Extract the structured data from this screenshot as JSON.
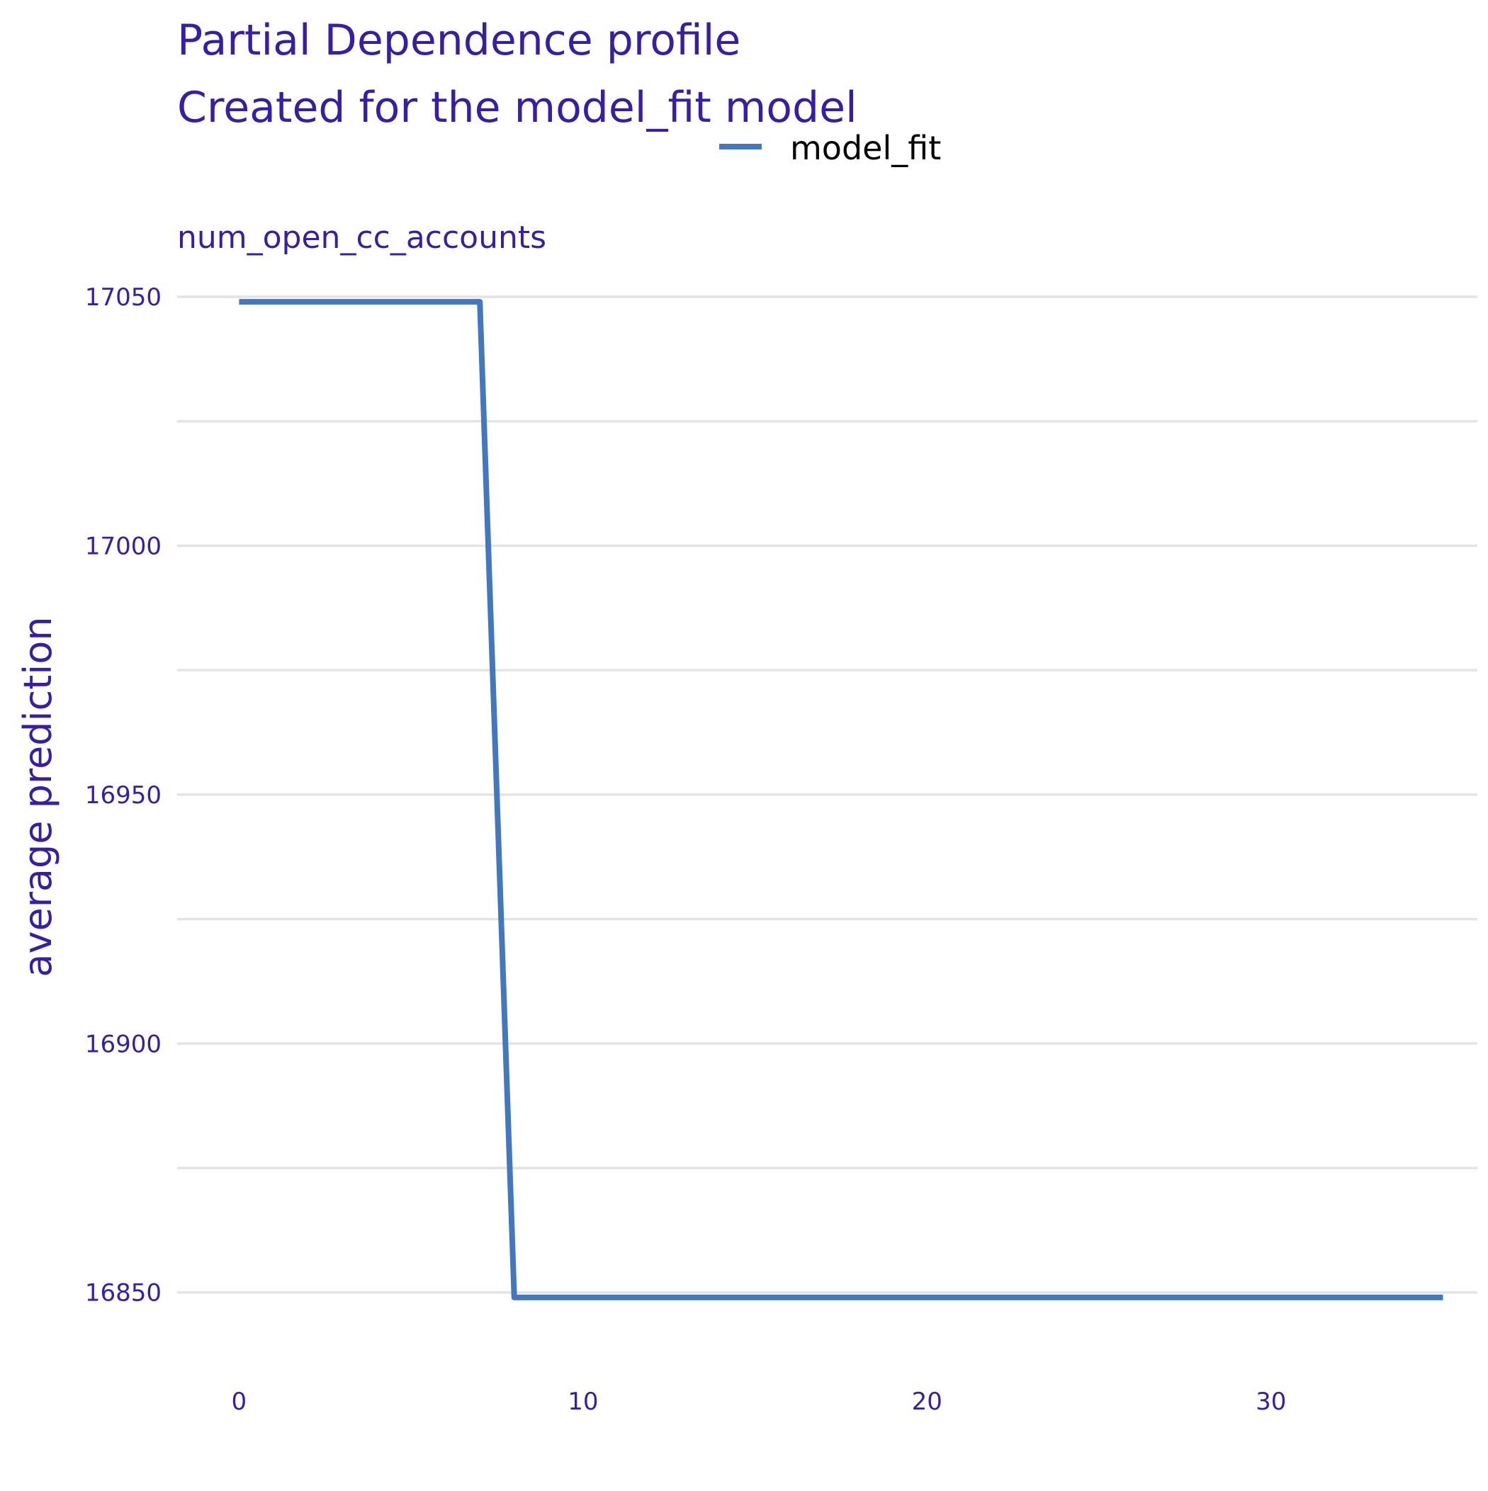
{
  "title": "Partial Dependence profile",
  "subtitle": "Created for the model_fit model",
  "legend": {
    "label": "model_fit",
    "color": "#4378bf",
    "placement": "top"
  },
  "chart_data": {
    "type": "line",
    "facet_label": "num_open_cc_accounts",
    "ylabel": "average prediction",
    "xlabel": "",
    "xlim": [
      -1.8,
      36
    ],
    "ylim": [
      16840,
      17052
    ],
    "x_ticks": [
      "0",
      "10",
      "20",
      "30"
    ],
    "y_ticks": [
      "16850",
      "16900",
      "16950",
      "17000",
      "17050"
    ],
    "grid": true,
    "series": [
      {
        "name": "model_fit",
        "color": "#4378bf",
        "x": [
          0,
          7,
          8,
          35
        ],
        "y": [
          17049,
          17049,
          16849,
          16849
        ]
      }
    ]
  }
}
